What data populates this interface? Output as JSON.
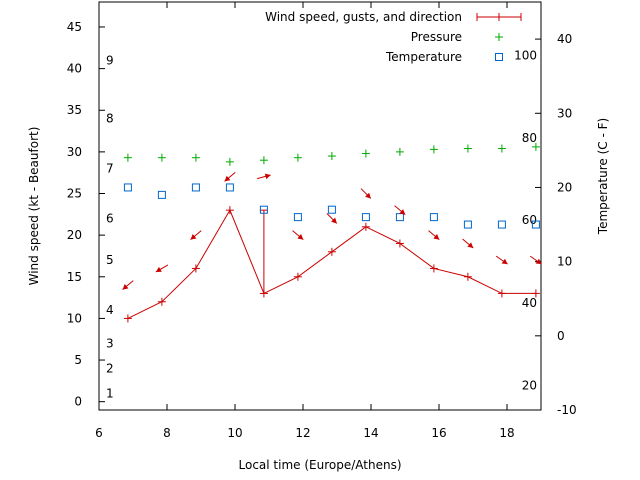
{
  "chart_data": {
    "type": "line",
    "xlabel": "Local time (Europe/Athens)",
    "ylabel": "Wind speed (kt - Beaufort)",
    "y2label": "Temperature (C - F)",
    "xlim": [
      6,
      19
    ],
    "ylim": [
      -1,
      48
    ],
    "y2lim": [
      -10,
      45
    ],
    "x_ticks": [
      6,
      8,
      10,
      12,
      14,
      16,
      18
    ],
    "y_ticks": [
      0,
      5,
      10,
      15,
      20,
      25,
      30,
      35,
      40,
      45
    ],
    "y2_ticks": [
      -10,
      0,
      10,
      20,
      30,
      40
    ],
    "beaufort_labels": [
      {
        "label": "1",
        "y": 1
      },
      {
        "label": "2",
        "y": 4
      },
      {
        "label": "3",
        "y": 7
      },
      {
        "label": "4",
        "y": 11
      },
      {
        "label": "5",
        "y": 17
      },
      {
        "label": "6",
        "y": 22
      },
      {
        "label": "7",
        "y": 28
      },
      {
        "label": "8",
        "y": 34
      },
      {
        "label": "9",
        "y": 41
      }
    ],
    "fahrenheit_labels": [
      {
        "label": "20",
        "y2": -6.7
      },
      {
        "label": "40",
        "y2": 4.4
      },
      {
        "label": "60",
        "y2": 15.6
      },
      {
        "label": "80",
        "y2": 26.7
      },
      {
        "label": "100",
        "y2": 37.8
      }
    ],
    "legend": {
      "position": "top-right",
      "entries": [
        {
          "name": "Wind speed, gusts, and direction",
          "color": "#cc0000",
          "marker": "line-plus"
        },
        {
          "name": "Pressure",
          "color": "#00aa00",
          "marker": "plus"
        },
        {
          "name": "Temperature",
          "color": "#0066cc",
          "marker": "square"
        }
      ]
    },
    "series": [
      {
        "name": "Wind speed, gusts, and direction",
        "color": "#cc0000",
        "x": [
          6.85,
          7.85,
          8.85,
          9.85,
          10.85,
          11.85,
          12.85,
          13.85,
          14.85,
          15.85,
          16.85,
          17.85,
          18.85
        ],
        "values": [
          10,
          12,
          16,
          23,
          13,
          15,
          18,
          21,
          19,
          16,
          15,
          13,
          13
        ],
        "gusts": [
          null,
          null,
          null,
          null,
          23,
          null,
          null,
          null,
          null,
          null,
          null,
          null,
          null
        ]
      },
      {
        "name": "Pressure",
        "color": "#00aa00",
        "x": [
          6.85,
          7.85,
          8.85,
          9.85,
          10.85,
          11.85,
          12.85,
          13.85,
          14.85,
          15.85,
          16.85,
          17.85,
          18.85
        ],
        "values": [
          29.3,
          29.3,
          29.3,
          28.8,
          29.0,
          29.3,
          29.5,
          29.8,
          30.0,
          30.3,
          30.4,
          30.4,
          30.6
        ]
      },
      {
        "name": "Temperature",
        "color": "#0066cc",
        "x": [
          6.85,
          7.85,
          8.85,
          9.85,
          10.85,
          11.85,
          12.85,
          13.85,
          14.85,
          15.85,
          16.85,
          17.85,
          18.85
        ],
        "values": [
          20,
          19,
          20,
          20,
          17,
          16,
          17,
          16,
          16,
          16,
          15,
          15,
          15
        ]
      }
    ],
    "wind_direction_arrows": {
      "color": "#cc0000",
      "x": [
        6.85,
        7.85,
        8.85,
        9.85,
        10.85,
        11.85,
        12.85,
        13.85,
        14.85,
        15.85,
        16.85,
        17.85,
        18.85
      ],
      "y": [
        14,
        16,
        20,
        27,
        27,
        20,
        22,
        25,
        23,
        20,
        19,
        17,
        17
      ],
      "direction_deg": [
        50,
        60,
        50,
        50,
        255,
        310,
        315,
        315,
        310,
        310,
        310,
        305,
        305
      ]
    }
  }
}
